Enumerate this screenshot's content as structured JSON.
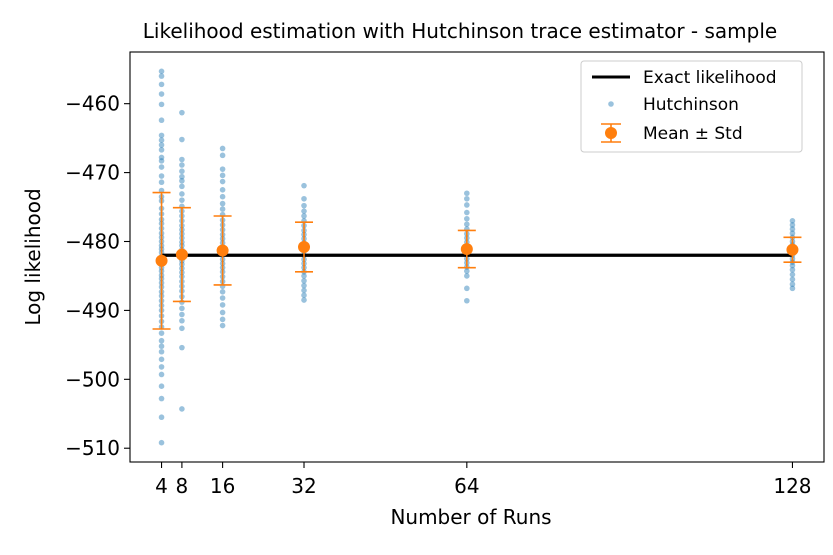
{
  "chart_data": {
    "type": "scatter",
    "title": "Likelihood estimation with Hutchinson trace estimator - sample",
    "xlabel": "Number of Runs",
    "ylabel": "Log likelihood",
    "xlim": [
      -2.2,
      134.2
    ],
    "ylim": [
      -512,
      -452.5
    ],
    "xticks": [
      4,
      8,
      16,
      32,
      64,
      128
    ],
    "yticks": [
      -460,
      -470,
      -480,
      -490,
      -500,
      -510
    ],
    "ytick_labels": [
      "−460",
      "−470",
      "−480",
      "−490",
      "−500",
      "−510"
    ],
    "exact_likelihood": -482,
    "legend_position": "top-right",
    "colors": {
      "exact": "#000000",
      "hutchinson": "#1f77b4",
      "mean": "#ff7f0e"
    },
    "series": [
      {
        "name": "Exact likelihood",
        "kind": "line",
        "x": [
          4,
          128
        ],
        "y": [
          -482,
          -482
        ]
      },
      {
        "name": "Hutchinson",
        "kind": "scatter",
        "points": [
          {
            "x": 4,
            "values": [
              -455.3,
              -456.0,
              -457.2,
              -458.6,
              -460.1,
              -462.4,
              -464.6,
              -465.3,
              -466.0,
              -466.7,
              -467.8,
              -468.3,
              -469.2,
              -470.5,
              -471.4,
              -472.6,
              -473.5,
              -474.1,
              -475.2,
              -476.0,
              -476.8,
              -477.4,
              -478.1,
              -478.8,
              -479.4,
              -480.0,
              -480.6,
              -481.1,
              -481.6,
              -482.2,
              -482.7,
              -483.3,
              -483.8,
              -484.3,
              -484.9,
              -485.4,
              -486.0,
              -486.6,
              -487.3,
              -487.9,
              -488.6,
              -489.3,
              -490.0,
              -490.8,
              -491.6,
              -492.4,
              -493.3,
              -494.4,
              -495.2,
              -496.0,
              -497.1,
              -498.2,
              -499.3,
              -501.0,
              -502.8,
              -505.5,
              -509.2
            ]
          },
          {
            "x": 8,
            "values": [
              -461.3,
              -465.2,
              -468.1,
              -468.9,
              -469.8,
              -470.6,
              -471.2,
              -472.0,
              -473.1,
              -474.0,
              -474.9,
              -475.6,
              -476.3,
              -477.0,
              -477.7,
              -478.3,
              -478.9,
              -479.5,
              -480.1,
              -480.6,
              -481.2,
              -481.7,
              -482.2,
              -482.8,
              -483.3,
              -483.9,
              -484.5,
              -485.1,
              -485.8,
              -486.5,
              -487.2,
              -488.0,
              -488.8,
              -489.7,
              -490.6,
              -491.5,
              -492.6,
              -495.4,
              -504.3
            ]
          },
          {
            "x": 16,
            "values": [
              -466.5,
              -467.5,
              -469.5,
              -470.4,
              -471.3,
              -472.5,
              -473.5,
              -474.5,
              -475.3,
              -476.1,
              -476.9,
              -477.6,
              -478.3,
              -479.0,
              -479.6,
              -480.2,
              -480.8,
              -481.4,
              -482.0,
              -482.6,
              -483.2,
              -483.8,
              -484.4,
              -485.1,
              -485.8,
              -486.5,
              -487.3,
              -488.2,
              -489.2,
              -490.3,
              -491.3,
              -492.2
            ]
          },
          {
            "x": 32,
            "values": [
              -471.9,
              -473.8,
              -474.8,
              -475.6,
              -476.3,
              -477.0,
              -477.7,
              -478.4,
              -479.0,
              -479.6,
              -480.2,
              -480.8,
              -481.4,
              -482.0,
              -482.6,
              -483.2,
              -483.8,
              -484.4,
              -485.0,
              -485.7,
              -486.4,
              -487.1,
              -487.8,
              -488.5
            ]
          },
          {
            "x": 64,
            "values": [
              -473.0,
              -473.8,
              -474.7,
              -475.8,
              -476.7,
              -477.5,
              -478.2,
              -478.9,
              -479.5,
              -480.1,
              -480.7,
              -481.3,
              -481.9,
              -482.5,
              -483.1,
              -483.7,
              -484.3,
              -485.0,
              -486.8,
              -488.6
            ]
          },
          {
            "x": 128,
            "values": [
              -477.0,
              -477.6,
              -478.2,
              -478.8,
              -479.4,
              -480.0,
              -480.5,
              -481.0,
              -481.5,
              -482.0,
              -482.5,
              -483.0,
              -483.5,
              -484.1,
              -484.8,
              -485.5,
              -486.2,
              -486.8
            ]
          }
        ]
      },
      {
        "name": "Mean ± Std",
        "kind": "errorbar",
        "x": [
          4,
          8,
          16,
          32,
          64,
          128
        ],
        "mean": [
          -482.8,
          -481.9,
          -481.3,
          -480.8,
          -481.1,
          -481.2
        ],
        "std": [
          9.9,
          6.8,
          5.0,
          3.6,
          2.7,
          1.8
        ]
      }
    ]
  }
}
